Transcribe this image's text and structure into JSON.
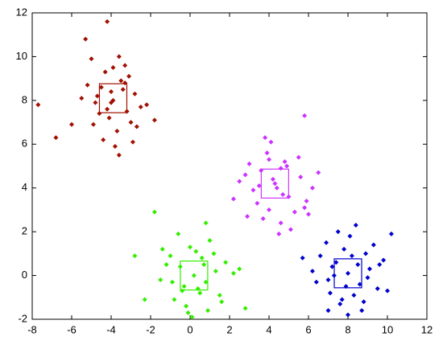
{
  "chart_data": {
    "type": "scatter",
    "xlim": [
      -8,
      12
    ],
    "xticks": [
      -8,
      -6,
      -4,
      -2,
      0,
      2,
      4,
      6,
      8,
      10,
      12
    ],
    "ylim": [
      -2,
      12
    ],
    "yticks": [
      -2,
      0,
      2,
      4,
      6,
      8,
      10,
      12
    ],
    "series": [
      {
        "color": "#a01000",
        "center": [
          -3.9,
          8.1
        ],
        "x": [
          -3.9,
          -4.5,
          -3.2,
          -4.8,
          -3.5,
          -4.1,
          -2.8,
          -5.2,
          -3.7,
          -4.3,
          -3.0,
          -4.9,
          -3.3,
          -4.0,
          -2.5,
          -5.5,
          -3.6,
          -4.6,
          -2.2,
          -3.8,
          -4.4,
          -3.1,
          -5.0,
          -3.4,
          -4.2,
          -2.7,
          -1.8,
          -6.0,
          -4.7,
          -3.6,
          -7.7,
          -4.2,
          -6.8,
          -5.3,
          -3.9,
          -2.9,
          -4.0,
          -3.3
        ],
        "y": [
          8.0,
          8.6,
          7.5,
          7.9,
          8.9,
          7.2,
          8.3,
          8.7,
          6.6,
          9.3,
          7.0,
          6.9,
          9.6,
          8.4,
          7.7,
          8.1,
          10.0,
          7.4,
          7.8,
          5.9,
          6.2,
          9.1,
          9.9,
          8.5,
          7.6,
          6.8,
          7.1,
          6.9,
          8.2,
          5.5,
          7.8,
          11.6,
          6.3,
          10.8,
          9.5,
          6.1,
          7.9,
          8.8
        ]
      },
      {
        "color": "#cc33ff",
        "center": [
          4.3,
          4.2
        ],
        "x": [
          4.3,
          3.6,
          5.0,
          4.8,
          3.2,
          5.6,
          4.0,
          2.8,
          4.6,
          5.9,
          3.9,
          4.4,
          2.5,
          5.3,
          3.4,
          6.2,
          4.1,
          4.9,
          3.0,
          5.1,
          4.7,
          3.7,
          5.5,
          2.2,
          4.2,
          6.0,
          3.5,
          5.8,
          4.5,
          5.8,
          3.8,
          4.0,
          6.5,
          2.9,
          4.6
        ],
        "y": [
          4.2,
          4.8,
          3.6,
          5.2,
          3.9,
          4.5,
          3.0,
          4.6,
          2.4,
          3.4,
          5.6,
          4.0,
          4.3,
          2.9,
          3.3,
          4.0,
          6.1,
          5.0,
          5.1,
          2.1,
          3.7,
          2.6,
          5.4,
          3.5,
          4.4,
          2.8,
          4.1,
          7.3,
          1.9,
          3.1,
          6.3,
          5.3,
          4.7,
          2.7,
          4.9
        ]
      },
      {
        "color": "#33ee00",
        "center": [
          0.2,
          0.0
        ],
        "x": [
          0.2,
          -0.5,
          0.8,
          -1.0,
          0.5,
          1.3,
          -0.3,
          0.0,
          1.8,
          -1.5,
          0.6,
          -0.8,
          1.0,
          2.2,
          -0.2,
          0.4,
          -1.2,
          1.5,
          -0.6,
          0.9,
          -1.8,
          0.8,
          -2.8,
          2.8,
          -0.4,
          1.2,
          0.1,
          -2.3,
          2.5,
          -0.9,
          0.3,
          1.6,
          -1.4,
          0.7,
          -0.1
        ],
        "y": [
          0.0,
          0.4,
          -0.3,
          0.9,
          -0.8,
          0.2,
          -0.5,
          1.3,
          0.6,
          -0.2,
          0.8,
          -1.1,
          1.6,
          0.1,
          -1.4,
          -0.6,
          0.5,
          -0.9,
          1.9,
          -1.6,
          2.9,
          2.4,
          0.9,
          -1.5,
          -0.7,
          1.0,
          -1.9,
          -1.1,
          0.3,
          -0.3,
          1.1,
          -1.2,
          1.2,
          0.5,
          -1.7
        ]
      },
      {
        "color": "#0000cc",
        "center": [
          8.0,
          0.1
        ],
        "x": [
          8.0,
          7.4,
          8.6,
          7.8,
          9.1,
          7.0,
          8.3,
          6.6,
          8.9,
          7.6,
          9.5,
          8.1,
          7.2,
          8.7,
          6.2,
          9.8,
          7.9,
          8.4,
          7.1,
          9.3,
          10.2,
          7.0,
          5.7,
          8.5,
          7.7,
          9.0,
          6.9,
          8.2,
          10.0,
          7.5,
          8.8,
          6.4,
          9.6,
          8.0,
          7.3
        ],
        "y": [
          0.1,
          0.6,
          -0.4,
          1.2,
          0.3,
          -0.2,
          -0.9,
          0.9,
          1.0,
          -1.3,
          -0.6,
          1.8,
          0.4,
          -1.6,
          0.2,
          0.7,
          -0.5,
          2.3,
          -0.8,
          1.4,
          1.9,
          -1.6,
          0.8,
          0.5,
          -1.1,
          -0.1,
          1.5,
          0.9,
          -0.7,
          2.0,
          -1.2,
          -0.3,
          0.5,
          -1.8,
          0.0
        ]
      }
    ]
  }
}
